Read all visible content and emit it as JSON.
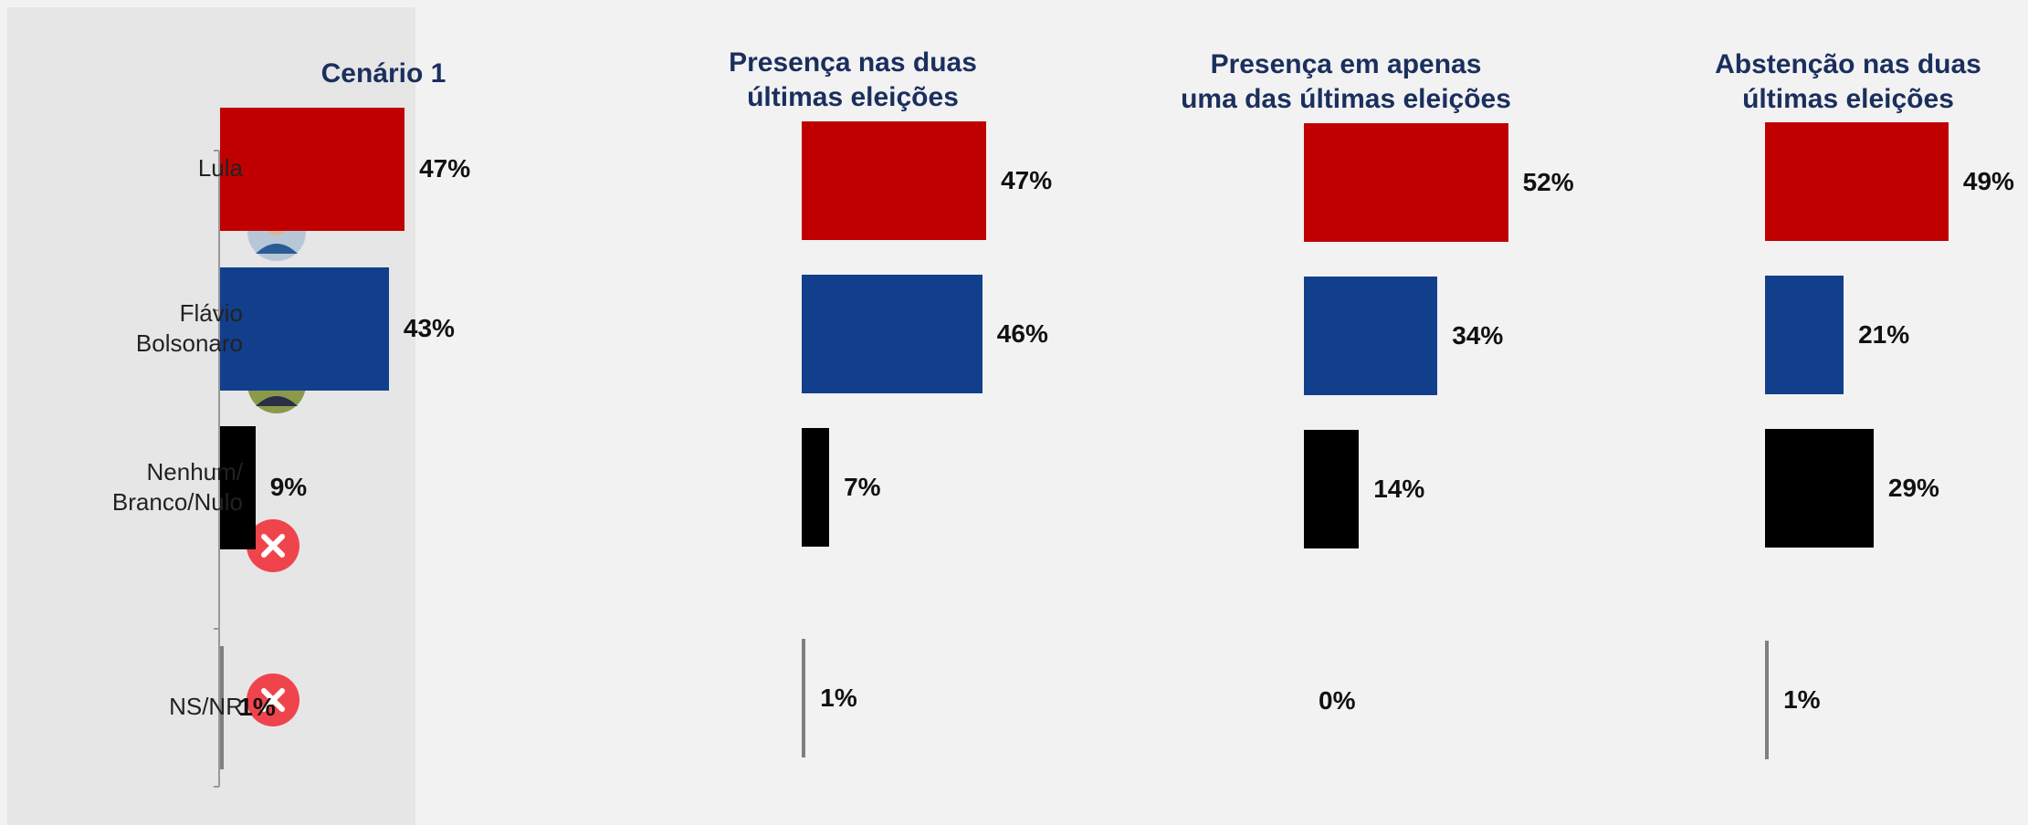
{
  "chart_data": [
    {
      "type": "bar",
      "orientation": "horizontal",
      "title": "Cenário 1",
      "categories": [
        "Lula",
        "Flávio\nBolsonaro",
        "Nenhum/\nBranco/Nulo",
        "NS/NR"
      ],
      "values": [
        47,
        43,
        9,
        1
      ],
      "value_labels": [
        "47%",
        "43%",
        "9%",
        "1%"
      ],
      "colors": [
        "#c00000",
        "#123f8c",
        "#000000",
        "#808080"
      ]
    },
    {
      "type": "bar",
      "orientation": "horizontal",
      "title": "Presença nas duas\núltimas eleições",
      "values": [
        47,
        46,
        7,
        1
      ],
      "value_labels": [
        "47%",
        "46%",
        "7%",
        "1%"
      ],
      "colors": [
        "#c00000",
        "#123f8c",
        "#000000",
        "#808080"
      ]
    },
    {
      "type": "bar",
      "orientation": "horizontal",
      "title": "Presença em apenas\numa das últimas eleições",
      "values": [
        52,
        34,
        14,
        0
      ],
      "value_labels": [
        "52%",
        "34%",
        "14%",
        "0%"
      ],
      "colors": [
        "#c00000",
        "#123f8c",
        "#000000",
        "#808080"
      ]
    },
    {
      "type": "bar",
      "orientation": "horizontal",
      "title": "Abstenção nas duas\núltimas eleições",
      "values": [
        49,
        21,
        29,
        1
      ],
      "value_labels": [
        "49%",
        "21%",
        "29%",
        "1%"
      ],
      "colors": [
        "#c00000",
        "#123f8c",
        "#000000",
        "#808080"
      ]
    }
  ]
}
